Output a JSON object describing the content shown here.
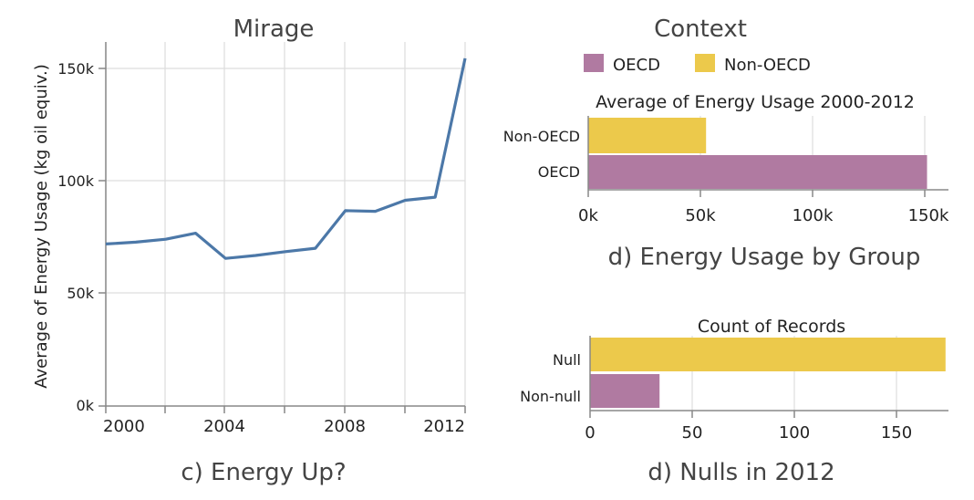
{
  "left": {
    "title": "Mirage",
    "caption": "c) Energy Up?",
    "chart_data": {
      "type": "line",
      "ylabel": "Average of Energy Usage  (kg oil equiv.)",
      "x": [
        2000,
        2001,
        2002,
        2003,
        2004,
        2005,
        2006,
        2007,
        2008,
        2009,
        2010,
        2011,
        2012
      ],
      "values": [
        72000,
        72800,
        74100,
        76800,
        65600,
        66900,
        68600,
        70100,
        86800,
        86500,
        91400,
        92800,
        154500
      ],
      "xticks": [
        "2000",
        "2004",
        "2008",
        "2012"
      ],
      "yticks": [
        "0k",
        "50k",
        "100k",
        "150k"
      ],
      "ylim": [
        0,
        158000
      ],
      "color": "#4c78a8"
    }
  },
  "right": {
    "title": "Context",
    "legend": [
      {
        "label": "OECD",
        "color": "#b07aa1"
      },
      {
        "label": "Non-OECD",
        "color": "#ecc94b"
      }
    ],
    "top": {
      "caption": "d) Energy Usage by Group",
      "chart_data": {
        "type": "bar",
        "title": "Average of Energy Usage 2000-2012",
        "categories": [
          "Non-OECD",
          "OECD"
        ],
        "values": [
          52500,
          151000
        ],
        "colors": [
          "#ecc94b",
          "#b07aa1"
        ],
        "xticks": [
          "0k",
          "50k",
          "100k",
          "150k"
        ],
        "xlim": [
          0,
          160000
        ]
      }
    },
    "bottom": {
      "caption": "d) Nulls in 2012",
      "chart_data": {
        "type": "bar",
        "title": "Count of Records",
        "categories": [
          "Null",
          "Non-null"
        ],
        "values": [
          174,
          34
        ],
        "colors": [
          "#ecc94b",
          "#b07aa1"
        ],
        "xticks": [
          "0",
          "50",
          "100",
          "150"
        ],
        "xlim": [
          0,
          174
        ]
      }
    }
  }
}
